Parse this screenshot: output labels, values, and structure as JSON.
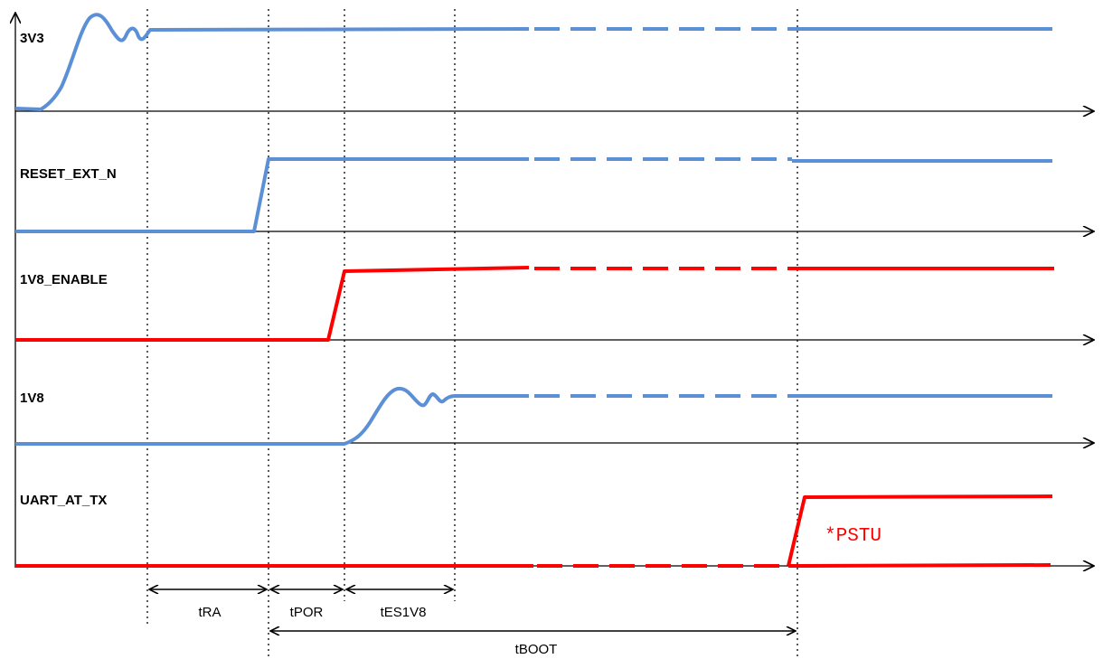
{
  "colors": {
    "blue": "#5b8fd6",
    "red": "#ff0000",
    "axis": "#000000"
  },
  "signals": [
    {
      "id": "3v3",
      "label": "3V3",
      "color": "blue"
    },
    {
      "id": "reset",
      "label": "RESET_EXT_N",
      "color": "blue"
    },
    {
      "id": "en1v8",
      "label": "1V8_ENABLE",
      "color": "red"
    },
    {
      "id": "v1v8",
      "label": "1V8",
      "color": "blue"
    },
    {
      "id": "uart",
      "label": "UART_AT_TX",
      "color": "red"
    }
  ],
  "annotations": {
    "uart_note": "*PSTU"
  },
  "timings": [
    {
      "id": "tra",
      "label": "tRA"
    },
    {
      "id": "tpor",
      "label": "tPOR"
    },
    {
      "id": "tes1v8",
      "label": "tES1V8"
    },
    {
      "id": "tboot",
      "label": "tBOOT"
    }
  ]
}
